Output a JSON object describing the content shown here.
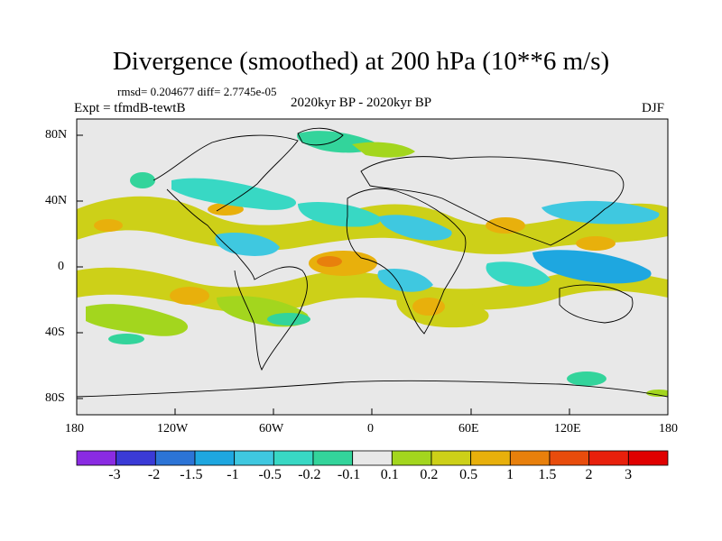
{
  "title": "Divergence (smoothed) at 200 hPa (10**6 m/s)",
  "stats": "rmsd= 0.204677 diff= 2.7745e-05",
  "experiment": "Expt = tfmdB-tewtB",
  "period": "2020kyr BP - 2020kyr BP",
  "season": "DJF",
  "lat_labels": [
    "80N",
    "40N",
    "0",
    "40S",
    "80S"
  ],
  "lon_labels": [
    "180",
    "120W",
    "60W",
    "0",
    "60E",
    "120E",
    "180"
  ],
  "colorbar": {
    "labels": [
      "-3",
      "-2",
      "-1.5",
      "-1",
      "-0.5",
      "-0.2",
      "-0.1",
      "0.1",
      "0.2",
      "0.5",
      "1",
      "1.5",
      "2",
      "3"
    ],
    "colors": [
      "#8a2be2",
      "#3a3ad6",
      "#2c74d6",
      "#1ea7e0",
      "#3fc8e0",
      "#38d8c4",
      "#33d49b",
      "#e8e8e8",
      "#a3d61e",
      "#cdd018",
      "#e8b00c",
      "#e8800c",
      "#e84c0c",
      "#e8200c",
      "#e00000"
    ]
  }
}
